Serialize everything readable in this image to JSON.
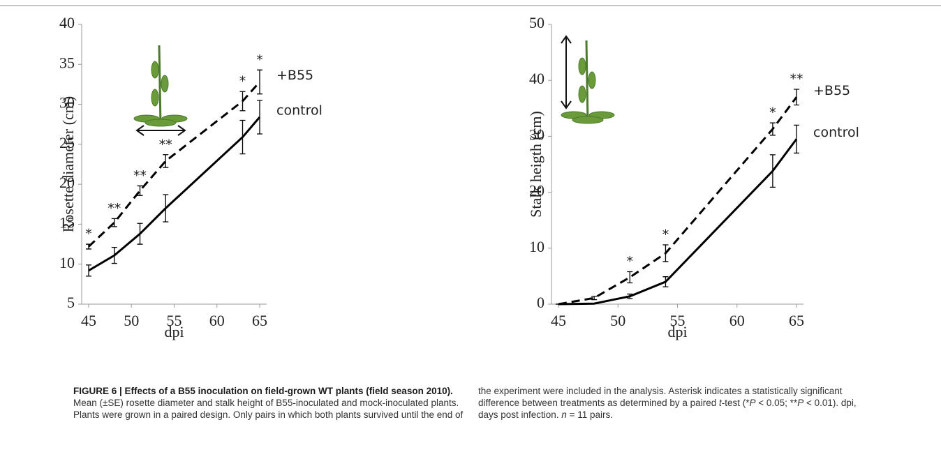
{
  "chart_data": [
    {
      "type": "line",
      "ylabel": "Rosette diameter (cm)",
      "xlabel": "dpi",
      "x": [
        45,
        48,
        51,
        54,
        63,
        65
      ],
      "xlim": [
        45,
        65
      ],
      "xticks": [
        45,
        50,
        55,
        60,
        65
      ],
      "ylim": [
        5,
        40
      ],
      "yticks": [
        5,
        10,
        15,
        20,
        25,
        30,
        35,
        40
      ],
      "significance": [
        "*",
        "**",
        "**",
        "**",
        "*",
        "*"
      ],
      "series": [
        {
          "name": "+B55",
          "color": "#000000",
          "line_style": "dashed",
          "values": [
            12.2,
            15.2,
            19.2,
            22.9,
            30.4,
            32.8
          ],
          "errors": [
            0.3,
            0.5,
            0.6,
            0.8,
            1.2,
            1.5
          ]
        },
        {
          "name": "control",
          "color": "#000000",
          "line_style": "solid",
          "values": [
            9.2,
            11.1,
            13.8,
            17,
            25.9,
            28.4
          ],
          "errors": [
            0.7,
            1.0,
            1.3,
            1.7,
            2.1,
            2.1
          ]
        }
      ]
    },
    {
      "type": "line",
      "ylabel": "Stalk heigth (cm)",
      "xlabel": "dpi",
      "x": [
        45,
        48,
        51,
        54,
        63,
        65
      ],
      "xlim": [
        45,
        65
      ],
      "xticks": [
        45,
        50,
        55,
        60,
        65
      ],
      "ylim": [
        0,
        50
      ],
      "yticks": [
        0,
        10,
        20,
        30,
        40,
        50
      ],
      "significance": [
        null,
        null,
        "*",
        "*",
        "*",
        "**"
      ],
      "series": [
        {
          "name": "+B55",
          "color": "#000000",
          "line_style": "dashed",
          "values": [
            0,
            1.1,
            4.8,
            9.1,
            31.3,
            37
          ],
          "errors": [
            0,
            0.3,
            1.0,
            1.5,
            1.1,
            1.4
          ]
        },
        {
          "name": "control",
          "color": "#000000",
          "line_style": "solid",
          "values": [
            0,
            0.1,
            1.4,
            4,
            23.8,
            29.5
          ],
          "errors": [
            0,
            0,
            0.4,
            0.9,
            2.9,
            2.5
          ]
        }
      ]
    }
  ],
  "caption": {
    "title": "FIGURE 6 | Effects of a B55 inoculation on field-grown WT plants (field season 2010).",
    "segments": [
      " Mean (±SE) rosette diameter and stalk height of B55-inoculated and mock-inoculated plants. Plants were grown in a paired design. Only pairs in which both plants survived until the end of the experiment were included in the analysis. Asterisk indicates a statistically significant difference between treatments as determined by a paired ",
      "t",
      "-test (*",
      "P",
      " < 0.05; **",
      "P",
      " < 0.01). dpi, days post infection. ",
      "n",
      " = 11 pairs."
    ]
  }
}
